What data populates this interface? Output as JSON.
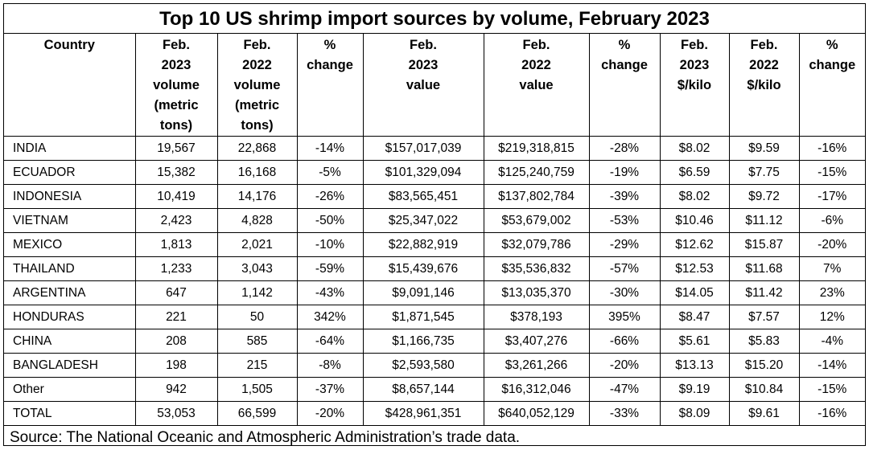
{
  "title": "Top 10 US shrimp import sources by volume, February 2023",
  "headers": [
    [
      "Country"
    ],
    [
      "Feb.",
      "2023",
      "volume",
      "(metric",
      "tons)"
    ],
    [
      "Feb.",
      "2022",
      "volume",
      "(metric",
      "tons)"
    ],
    [
      "%",
      "change"
    ],
    [
      "Feb.",
      "2023",
      "value"
    ],
    [
      "Feb.",
      "2022",
      "value"
    ],
    [
      "%",
      "change"
    ],
    [
      "Feb.",
      "2023",
      "$/kilo"
    ],
    [
      "Feb.",
      "2022",
      "$/kilo"
    ],
    [
      "%",
      "change"
    ]
  ],
  "rows": [
    [
      "INDIA",
      "19,567",
      "22,868",
      "-14%",
      "$157,017,039",
      "$219,318,815",
      "-28%",
      "$8.02",
      "$9.59",
      "-16%"
    ],
    [
      "ECUADOR",
      "15,382",
      "16,168",
      "-5%",
      "$101,329,094",
      "$125,240,759",
      "-19%",
      "$6.59",
      "$7.75",
      "-15%"
    ],
    [
      "INDONESIA",
      "10,419",
      "14,176",
      "-26%",
      "$83,565,451",
      "$137,802,784",
      "-39%",
      "$8.02",
      "$9.72",
      "-17%"
    ],
    [
      "VIETNAM",
      "2,423",
      "4,828",
      "-50%",
      "$25,347,022",
      "$53,679,002",
      "-53%",
      "$10.46",
      "$11.12",
      "-6%"
    ],
    [
      "MEXICO",
      "1,813",
      "2,021",
      "-10%",
      "$22,882,919",
      "$32,079,786",
      "-29%",
      "$12.62",
      "$15.87",
      "-20%"
    ],
    [
      "THAILAND",
      "1,233",
      "3,043",
      "-59%",
      "$15,439,676",
      "$35,536,832",
      "-57%",
      "$12.53",
      "$11.68",
      "7%"
    ],
    [
      "ARGENTINA",
      "647",
      "1,142",
      "-43%",
      "$9,091,146",
      "$13,035,370",
      "-30%",
      "$14.05",
      "$11.42",
      "23%"
    ],
    [
      "HONDURAS",
      "221",
      "50",
      "342%",
      "$1,871,545",
      "$378,193",
      "395%",
      "$8.47",
      "$7.57",
      "12%"
    ],
    [
      "CHINA",
      "208",
      "585",
      "-64%",
      "$1,166,735",
      "$3,407,276",
      "-66%",
      "$5.61",
      "$5.83",
      "-4%"
    ],
    [
      "BANGLADESH",
      "198",
      "215",
      "-8%",
      "$2,593,580",
      "$3,261,266",
      "-20%",
      "$13.13",
      "$15.20",
      "-14%"
    ],
    [
      "Other",
      "942",
      "1,505",
      "-37%",
      "$8,657,144",
      "$16,312,046",
      "-47%",
      "$9.19",
      "$10.84",
      "-15%"
    ],
    [
      "TOTAL",
      "53,053",
      "66,599",
      "-20%",
      "$428,961,351",
      "$640,052,129",
      "-33%",
      "$8.09",
      "$9.61",
      "-16%"
    ]
  ],
  "source": "Source: The National Oceanic and Atmospheric Administration’s trade data."
}
